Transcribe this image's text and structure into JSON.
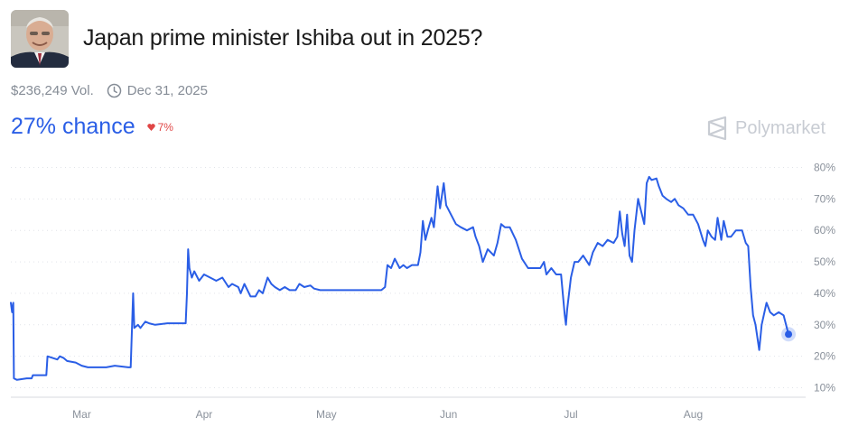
{
  "header": {
    "title": "Japan prime minister Ishiba out in 2025?",
    "volume": "$236,249 Vol.",
    "end_date": "Dec 31, 2025"
  },
  "odds": {
    "chance": "27% chance",
    "change": "7%"
  },
  "brand": {
    "name": "Polymarket"
  },
  "colors": {
    "line": "#2a5ee6",
    "down": "#e04646",
    "brand": "#c8ccd3"
  },
  "icons": {
    "clock": "clock-icon",
    "change": "heart-down-icon",
    "brand": "polymarket-logo-icon"
  },
  "chart_data": {
    "type": "line",
    "title": "",
    "xlabel": "",
    "ylabel": "",
    "x_unit": "month-of-2025 (1 = Jan 1)",
    "x_ticks": [
      {
        "label": "Mar",
        "x": 3.0
      },
      {
        "label": "Apr",
        "x": 4.0
      },
      {
        "label": "May",
        "x": 5.0
      },
      {
        "label": "Jun",
        "x": 6.0
      },
      {
        "label": "Jul",
        "x": 7.0
      },
      {
        "label": "Aug",
        "x": 8.0
      }
    ],
    "y_ticks": [
      "10%",
      "20%",
      "30%",
      "40%",
      "50%",
      "60%",
      "70%",
      "80%"
    ],
    "ylim": [
      7,
      83
    ],
    "xlim": [
      2.42,
      8.92
    ],
    "grid": true,
    "series": [
      {
        "values": [
          [
            2.42,
            37
          ],
          [
            2.43,
            34
          ],
          [
            2.44,
            37
          ],
          [
            2.445,
            13
          ],
          [
            2.47,
            12.5
          ],
          [
            2.55,
            13
          ],
          [
            2.59,
            13
          ],
          [
            2.6,
            14
          ],
          [
            2.71,
            14
          ],
          [
            2.72,
            20
          ],
          [
            2.8,
            19
          ],
          [
            2.82,
            20
          ],
          [
            2.85,
            19.5
          ],
          [
            2.88,
            18.5
          ],
          [
            2.95,
            18
          ],
          [
            3.0,
            17
          ],
          [
            3.05,
            16.5
          ],
          [
            3.1,
            16.5
          ],
          [
            3.2,
            16.5
          ],
          [
            3.27,
            17
          ],
          [
            3.38,
            16.5
          ],
          [
            3.4,
            16.5
          ],
          [
            3.42,
            40
          ],
          [
            3.43,
            29
          ],
          [
            3.46,
            30
          ],
          [
            3.48,
            29
          ],
          [
            3.52,
            31
          ],
          [
            3.55,
            30.5
          ],
          [
            3.6,
            30
          ],
          [
            3.7,
            30.5
          ],
          [
            3.85,
            30.5
          ],
          [
            3.86,
            40
          ],
          [
            3.87,
            54
          ],
          [
            3.88,
            48
          ],
          [
            3.9,
            45
          ],
          [
            3.92,
            47
          ],
          [
            3.96,
            44
          ],
          [
            4.0,
            46
          ],
          [
            4.05,
            45
          ],
          [
            4.1,
            44
          ],
          [
            4.15,
            45
          ],
          [
            4.2,
            42
          ],
          [
            4.23,
            43
          ],
          [
            4.28,
            42
          ],
          [
            4.3,
            40
          ],
          [
            4.33,
            43
          ],
          [
            4.38,
            39
          ],
          [
            4.42,
            39
          ],
          [
            4.45,
            41
          ],
          [
            4.48,
            40
          ],
          [
            4.52,
            45
          ],
          [
            4.55,
            43
          ],
          [
            4.58,
            42
          ],
          [
            4.62,
            41
          ],
          [
            4.66,
            42
          ],
          [
            4.7,
            41
          ],
          [
            4.75,
            41
          ],
          [
            4.78,
            43
          ],
          [
            4.82,
            42
          ],
          [
            4.87,
            42.5
          ],
          [
            4.9,
            41.5
          ],
          [
            4.95,
            41
          ],
          [
            5.05,
            41
          ],
          [
            5.12,
            41
          ],
          [
            5.2,
            41
          ],
          [
            5.3,
            41
          ],
          [
            5.4,
            41
          ],
          [
            5.45,
            41
          ],
          [
            5.48,
            42
          ],
          [
            5.5,
            49
          ],
          [
            5.53,
            48
          ],
          [
            5.56,
            51
          ],
          [
            5.6,
            48
          ],
          [
            5.63,
            49
          ],
          [
            5.66,
            48
          ],
          [
            5.7,
            49
          ],
          [
            5.75,
            49
          ],
          [
            5.77,
            53
          ],
          [
            5.79,
            63
          ],
          [
            5.81,
            57
          ],
          [
            5.83,
            60
          ],
          [
            5.86,
            64
          ],
          [
            5.88,
            61
          ],
          [
            5.91,
            74
          ],
          [
            5.93,
            67
          ],
          [
            5.96,
            75
          ],
          [
            5.98,
            68
          ],
          [
            6.02,
            65
          ],
          [
            6.06,
            62
          ],
          [
            6.1,
            61
          ],
          [
            6.15,
            60
          ],
          [
            6.2,
            61
          ],
          [
            6.22,
            58
          ],
          [
            6.25,
            55
          ],
          [
            6.28,
            50
          ],
          [
            6.32,
            54
          ],
          [
            6.37,
            52
          ],
          [
            6.4,
            56
          ],
          [
            6.43,
            62
          ],
          [
            6.46,
            61
          ],
          [
            6.5,
            61
          ],
          [
            6.55,
            57
          ],
          [
            6.6,
            51
          ],
          [
            6.65,
            48
          ],
          [
            6.7,
            48
          ],
          [
            6.75,
            48
          ],
          [
            6.78,
            50
          ],
          [
            6.8,
            46
          ],
          [
            6.84,
            48
          ],
          [
            6.88,
            46
          ],
          [
            6.92,
            46
          ],
          [
            6.95,
            33
          ],
          [
            6.96,
            30
          ],
          [
            6.97,
            35
          ],
          [
            7.0,
            45
          ],
          [
            7.03,
            50
          ],
          [
            7.06,
            50
          ],
          [
            7.1,
            52
          ],
          [
            7.15,
            49
          ],
          [
            7.18,
            53
          ],
          [
            7.22,
            56
          ],
          [
            7.26,
            55
          ],
          [
            7.3,
            57
          ],
          [
            7.35,
            56
          ],
          [
            7.38,
            58
          ],
          [
            7.4,
            66
          ],
          [
            7.42,
            59
          ],
          [
            7.44,
            55
          ],
          [
            7.46,
            65
          ],
          [
            7.48,
            52
          ],
          [
            7.5,
            50
          ],
          [
            7.52,
            60
          ],
          [
            7.55,
            70
          ],
          [
            7.6,
            62
          ],
          [
            7.62,
            75
          ],
          [
            7.64,
            77
          ],
          [
            7.66,
            76
          ],
          [
            7.7,
            76.5
          ],
          [
            7.72,
            74
          ],
          [
            7.75,
            71
          ],
          [
            7.78,
            70
          ],
          [
            7.82,
            69
          ],
          [
            7.85,
            70
          ],
          [
            7.88,
            68
          ],
          [
            7.92,
            67
          ],
          [
            7.96,
            65
          ],
          [
            8.0,
            65
          ],
          [
            8.04,
            62
          ],
          [
            8.08,
            57
          ],
          [
            8.1,
            55
          ],
          [
            8.12,
            60
          ],
          [
            8.15,
            58
          ],
          [
            8.18,
            57
          ],
          [
            8.2,
            64
          ],
          [
            8.23,
            57
          ],
          [
            8.25,
            63
          ],
          [
            8.28,
            58
          ],
          [
            8.31,
            58
          ],
          [
            8.35,
            60
          ],
          [
            8.4,
            60
          ],
          [
            8.43,
            56
          ],
          [
            8.45,
            55
          ],
          [
            8.47,
            42
          ],
          [
            8.49,
            33
          ],
          [
            8.51,
            30
          ],
          [
            8.54,
            22
          ],
          [
            8.56,
            30
          ],
          [
            8.6,
            37
          ],
          [
            8.63,
            34
          ],
          [
            8.66,
            33
          ],
          [
            8.7,
            34
          ],
          [
            8.74,
            33
          ],
          [
            8.78,
            27
          ]
        ]
      }
    ],
    "current": {
      "value": 27
    }
  }
}
